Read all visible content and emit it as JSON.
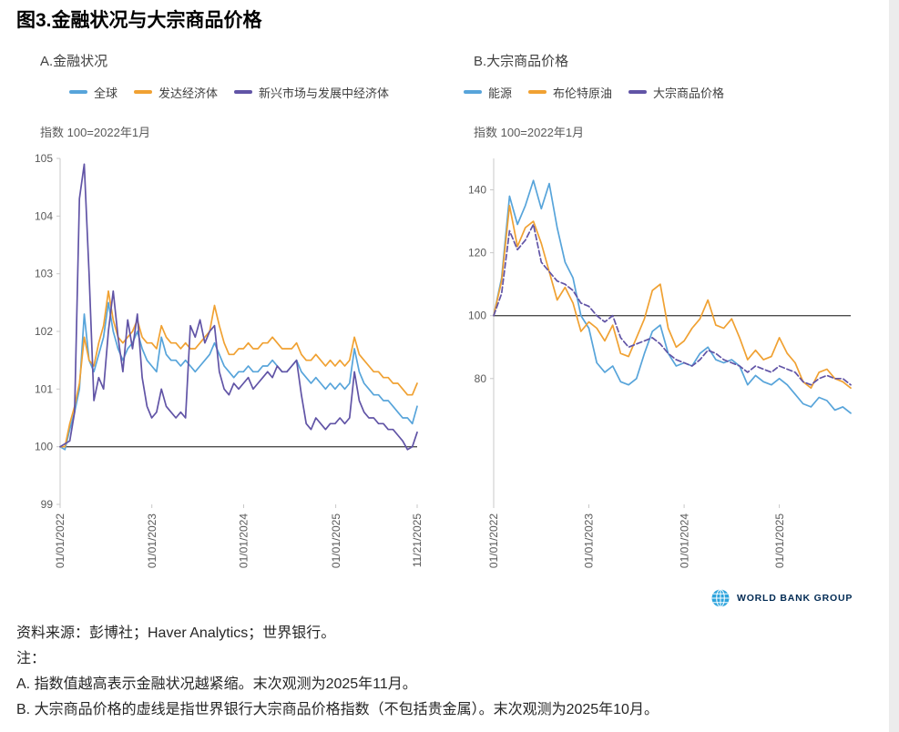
{
  "page": {
    "title": "图3.金融状况与大宗商品价格",
    "source_line": "资料来源：彭博社；Haver Analytics；世界银行。",
    "notes_label": "注：",
    "note_a": "A. 指数值越高表示金融状况越紧缩。末次观测为2025年11月。",
    "note_b": "B. 大宗商品价格的虚线是指世界银行大宗商品价格指数（不包括贵金属）。末次观测为2025年10月。",
    "logo_text": "WORLD BANK GROUP"
  },
  "colors": {
    "blue": "#57A4DA",
    "orange": "#F0A132",
    "purple": "#6154A6",
    "refline": "#4D4D4D",
    "axis": "#C8C8C8",
    "tick_text": "#595959",
    "logo_navy": "#022B54",
    "logo_blue": "#2CA3DC"
  },
  "chart_data": [
    {
      "type": "line",
      "panel_label": "A.金融状况",
      "unit_label": "指数 100=2022年1月",
      "ylim": [
        99,
        105
      ],
      "yticks": [
        99,
        100,
        101,
        102,
        103,
        104,
        105
      ],
      "refline": 100,
      "grid": false,
      "legend_position": "top",
      "xticks": [
        {
          "label": "01/01/2022",
          "pos": 0.0
        },
        {
          "label": "01/01/2023",
          "pos": 0.257
        },
        {
          "label": "01/01/2024",
          "pos": 0.514
        },
        {
          "label": "01/01/2025",
          "pos": 0.772
        },
        {
          "label": "11/21/2025",
          "pos": 1.0
        }
      ],
      "series": [
        {
          "name": "全球",
          "color_key": "blue",
          "dash": null,
          "values": [
            100.0,
            99.95,
            100.3,
            100.6,
            101.0,
            102.3,
            101.5,
            101.3,
            101.6,
            101.9,
            102.5,
            102.0,
            101.7,
            101.5,
            101.7,
            101.8,
            102.0,
            101.7,
            101.5,
            101.4,
            101.3,
            101.9,
            101.6,
            101.5,
            101.5,
            101.4,
            101.5,
            101.4,
            101.3,
            101.4,
            101.5,
            101.6,
            101.8,
            101.6,
            101.4,
            101.3,
            101.2,
            101.3,
            101.3,
            101.4,
            101.3,
            101.3,
            101.4,
            101.4,
            101.5,
            101.4,
            101.3,
            101.3,
            101.4,
            101.5,
            101.3,
            101.2,
            101.1,
            101.2,
            101.1,
            101.0,
            101.1,
            101.0,
            101.1,
            101.0,
            101.1,
            101.7,
            101.3,
            101.1,
            101.0,
            100.9,
            100.9,
            100.8,
            100.8,
            100.7,
            100.6,
            100.5,
            100.5,
            100.4,
            100.7
          ]
        },
        {
          "name": "发达经济体",
          "color_key": "orange",
          "dash": null,
          "values": [
            100.0,
            100.0,
            100.4,
            100.7,
            101.1,
            101.9,
            101.5,
            101.4,
            101.8,
            102.1,
            102.7,
            102.2,
            101.9,
            101.8,
            101.9,
            102.0,
            102.2,
            101.9,
            101.8,
            101.8,
            101.7,
            102.1,
            101.9,
            101.8,
            101.8,
            101.7,
            101.8,
            101.7,
            101.7,
            101.8,
            101.9,
            102.0,
            102.45,
            102.1,
            101.8,
            101.6,
            101.6,
            101.7,
            101.7,
            101.8,
            101.7,
            101.7,
            101.8,
            101.8,
            101.9,
            101.8,
            101.7,
            101.7,
            101.7,
            101.8,
            101.6,
            101.5,
            101.5,
            101.6,
            101.5,
            101.4,
            101.5,
            101.4,
            101.5,
            101.4,
            101.5,
            101.9,
            101.6,
            101.5,
            101.4,
            101.3,
            101.3,
            101.2,
            101.2,
            101.1,
            101.1,
            101.0,
            100.9,
            100.9,
            101.1
          ]
        },
        {
          "name": "新兴市场与发展中经济体",
          "color_key": "purple",
          "dash": null,
          "values": [
            100.0,
            100.05,
            100.1,
            100.6,
            104.3,
            104.9,
            103.0,
            100.8,
            101.2,
            101.0,
            102.0,
            102.7,
            101.9,
            101.3,
            102.2,
            101.7,
            102.3,
            101.2,
            100.7,
            100.5,
            100.6,
            101.0,
            100.7,
            100.6,
            100.5,
            100.6,
            100.5,
            102.1,
            101.9,
            102.2,
            101.8,
            102.0,
            102.1,
            101.3,
            101.0,
            100.9,
            101.1,
            101.0,
            101.1,
            101.2,
            101.0,
            101.1,
            101.2,
            101.3,
            101.2,
            101.4,
            101.3,
            101.3,
            101.4,
            101.5,
            100.9,
            100.4,
            100.3,
            100.5,
            100.4,
            100.3,
            100.4,
            100.4,
            100.5,
            100.4,
            100.5,
            101.3,
            100.8,
            100.6,
            100.5,
            100.5,
            100.4,
            100.4,
            100.3,
            100.3,
            100.2,
            100.1,
            99.95,
            100.0,
            100.25
          ]
        }
      ]
    },
    {
      "type": "line",
      "panel_label": "B.大宗商品价格",
      "unit_label": "指数 100=2022年1月",
      "ylim": [
        40,
        150
      ],
      "yticks": [
        80,
        100,
        120,
        140
      ],
      "refline": 100,
      "grid": false,
      "legend_position": "top",
      "xticks": [
        {
          "label": "01/01/2022",
          "pos": 0.0
        },
        {
          "label": "01/01/2023",
          "pos": 0.2667
        },
        {
          "label": "01/01/2024",
          "pos": 0.5333
        },
        {
          "label": "01/01/2025",
          "pos": 0.8
        }
      ],
      "series": [
        {
          "name": "能源",
          "color_key": "blue",
          "dash": null,
          "values": [
            100,
            112,
            138,
            129,
            135,
            143,
            134,
            142,
            128,
            117,
            112,
            100,
            96,
            85,
            82,
            84,
            79,
            78,
            80,
            88,
            95,
            97,
            88,
            84,
            85,
            84,
            88,
            90,
            86,
            85,
            86,
            84,
            78,
            81,
            79,
            78,
            80,
            78,
            75,
            72,
            71,
            74,
            73,
            70,
            71,
            69
          ]
        },
        {
          "name": "布伦特原油",
          "color_key": "orange",
          "dash": null,
          "values": [
            100,
            111,
            135,
            122,
            128,
            130,
            123,
            114,
            105,
            109,
            104,
            95,
            98,
            96,
            92,
            97,
            88,
            87,
            93,
            99,
            108,
            110,
            96,
            90,
            92,
            96,
            99,
            105,
            97,
            96,
            99,
            93,
            86,
            89,
            86,
            87,
            93,
            88,
            85,
            79,
            77,
            82,
            83,
            80,
            79,
            77
          ]
        },
        {
          "name": "大宗商品价格",
          "color_key": "purple",
          "dash": "6,3",
          "values": [
            100,
            107,
            127,
            121,
            124,
            129,
            117,
            114,
            111,
            110,
            108,
            104,
            103,
            100,
            98,
            100,
            93,
            90,
            91,
            92,
            93,
            91,
            88,
            86,
            85,
            84,
            86,
            89,
            88,
            86,
            85,
            84,
            82,
            84,
            83,
            82,
            84,
            83,
            82,
            79,
            78,
            80,
            81,
            80,
            80,
            78
          ]
        }
      ]
    }
  ]
}
